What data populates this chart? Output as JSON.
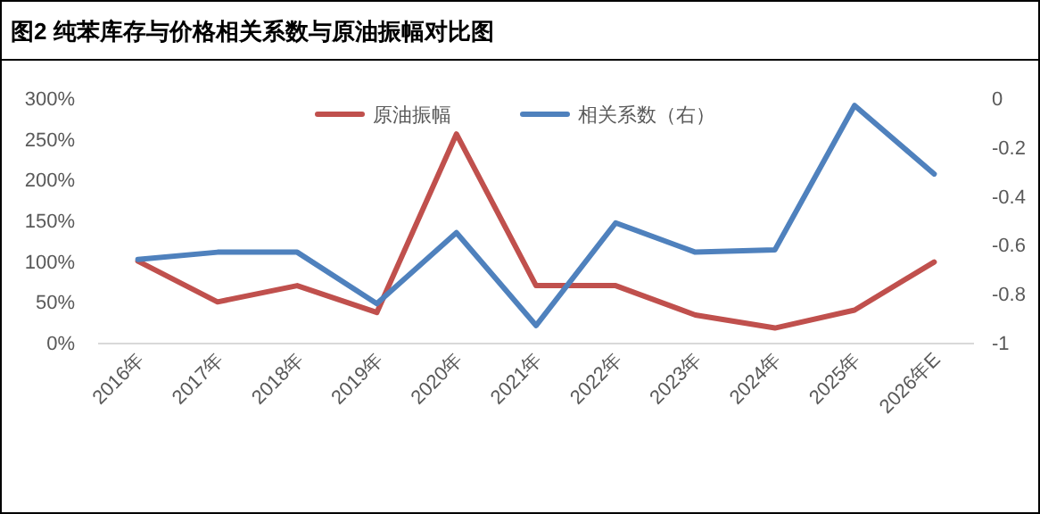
{
  "chart_data": {
    "type": "line",
    "title": "图2 纯苯库存与价格相关系数与原油振幅对比图",
    "categories": [
      "2016年",
      "2017年",
      "2018年",
      "2019年",
      "2020年",
      "2021年",
      "2022年",
      "2023年",
      "2024年",
      "2025年",
      "2026年E"
    ],
    "series": [
      {
        "name": "原油振幅",
        "color": "#c0504d",
        "values": [
          100,
          50,
          70,
          37,
          256,
          70,
          70,
          34,
          18,
          40,
          99
        ]
      },
      {
        "name": "相关系数（右）",
        "color": "#4f81bd",
        "axis": "y2",
        "values": [
          -0.66,
          -0.63,
          -0.63,
          -0.84,
          -0.55,
          -0.93,
          -0.51,
          -0.63,
          -0.62,
          -0.03,
          -0.31
        ]
      }
    ],
    "ylim": [
      0,
      300
    ],
    "yticks": [
      {
        "value": 0,
        "label": "0%"
      },
      {
        "value": 50,
        "label": "50%"
      },
      {
        "value": 100,
        "label": "100%"
      },
      {
        "value": 150,
        "label": "150%"
      },
      {
        "value": 200,
        "label": "200%"
      },
      {
        "value": 250,
        "label": "250%"
      },
      {
        "value": 300,
        "label": "300%"
      }
    ],
    "y2lim": [
      -1,
      0
    ],
    "y2ticks": [
      -1,
      -0.8,
      -0.6,
      -0.4,
      -0.2,
      0
    ],
    "legend": "top",
    "grid": false,
    "marker": "none",
    "line_style": "solid"
  }
}
